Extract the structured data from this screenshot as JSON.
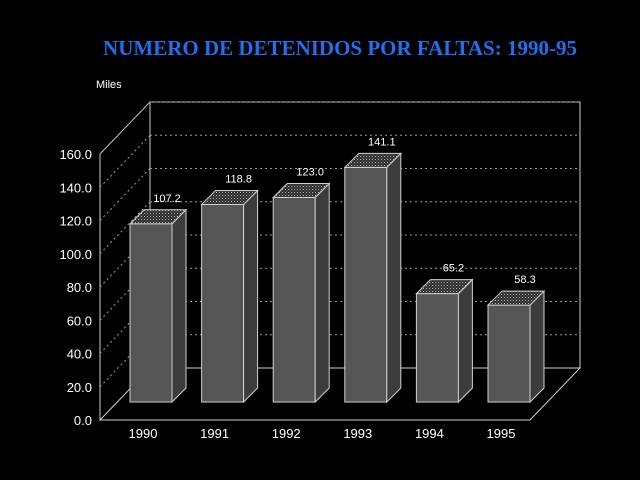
{
  "chart_data": {
    "type": "bar",
    "title": "NUMERO DE DETENIDOS POR FALTAS: 1990-95",
    "unit_label": "Miles",
    "categories": [
      "1990",
      "1991",
      "1992",
      "1993",
      "1994",
      "1995"
    ],
    "values": [
      107.2,
      118.8,
      123.0,
      141.1,
      65.2,
      58.3
    ],
    "value_labels": [
      "107.2",
      "118.8",
      "123.0",
      "141.1",
      "65.2",
      "58.3"
    ],
    "yticks": [
      "0.0",
      "20.0",
      "40.0",
      "60.0",
      "80.0",
      "100.0",
      "120.0",
      "140.0",
      "160.0"
    ],
    "ylim": [
      0,
      160
    ],
    "grid": true,
    "bar_color": "#555555",
    "background": "#000000",
    "title_color": "#1f6ff0"
  }
}
